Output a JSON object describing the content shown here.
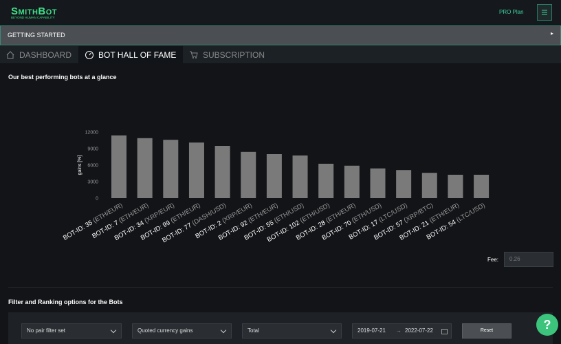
{
  "header": {
    "logo": "SmithBot",
    "tagline": "BEYOND HUMAN CAPABILITY",
    "plan": "PRO Plan"
  },
  "banner": "GETTING STARTED",
  "tabs": [
    "DASHBOARD",
    "BOT HALL OF FAME",
    "SUBSCRIPTION"
  ],
  "section_title": "Our best performing bots at a glance",
  "chart_data": {
    "type": "bar",
    "y_label": "gains [%]",
    "categories": [
      "BOT-ID: 35",
      "BOT-ID: 7",
      "BOT-ID: 34",
      "BOT-ID: 99",
      "BOT-ID: 77",
      "BOT-ID: 2",
      "BOT-ID: 92",
      "BOT-ID: 55",
      "BOT-ID: 102",
      "BOT-ID: 28",
      "BOT-ID: 70",
      "BOT-ID: 17",
      "BOT-ID: 57",
      "BOT-ID: 21",
      "BOT-ID: 54"
    ],
    "pairs": [
      "(ETH/EUR)",
      "(ETH/EUR)",
      "(XRP/EUR)",
      "(ETH/EUR)",
      "(DASH/USD)",
      "(XRP/EUR)",
      "(ETH/EUR)",
      "(ETH/USD)",
      "(ETH/USD)",
      "(ETH/EUR)",
      "(ETH/USD)",
      "(LTC/USD)",
      "(XRP/BTC)",
      "(ETH/EUR)",
      "(LTC/USD)"
    ],
    "values": [
      11400,
      10900,
      10600,
      10100,
      9500,
      8400,
      8000,
      7750,
      6250,
      5900,
      5400,
      5100,
      4600,
      4250,
      4250
    ],
    "color": "#7a7a7a",
    "ylim": [
      0,
      12000
    ],
    "yticks": [
      0,
      3000,
      6000,
      9000,
      12000
    ],
    "grid": false
  },
  "fee": {
    "label": "Fee:",
    "placeholder": "0.26"
  },
  "filter": {
    "title": "Filter and Ranking options for the Bots",
    "pair": "No pair filter set",
    "metric": "Quoted currency gains",
    "period": "Total",
    "date_from": "2019-07-21",
    "date_to": "2022-07-22",
    "reset": "Reset"
  },
  "help": "?"
}
